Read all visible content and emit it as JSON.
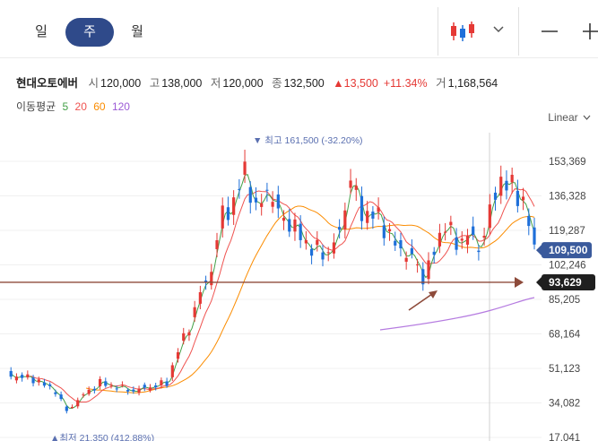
{
  "tabs": [
    {
      "label": "일",
      "active": false
    },
    {
      "label": "주",
      "active": true
    },
    {
      "label": "월",
      "active": false
    }
  ],
  "toolbar": {
    "chart_type_icon": "candlestick-icon",
    "dropdown_icon": "chevron-down-icon",
    "minimize_icon": "minus-icon",
    "add_icon": "plus-icon"
  },
  "stock": {
    "name": "현대오토에버",
    "open_label": "시",
    "open": "120,000",
    "high_label": "고",
    "high": "138,000",
    "low_label": "저",
    "low": "120,000",
    "close_label": "종",
    "close": "132,500",
    "change": "▲13,500",
    "change_pct": "+11.34%",
    "volume_label": "거",
    "volume": "1,168,564"
  },
  "ma_legend": {
    "label": "이동평균",
    "items": [
      {
        "period": "5",
        "color": "#43a047"
      },
      {
        "period": "20",
        "color": "#ef5350"
      },
      {
        "period": "60",
        "color": "#fb8c00"
      },
      {
        "period": "120",
        "color": "#9c5bd6"
      }
    ]
  },
  "scale_mode": "Linear",
  "colors": {
    "up": "#e53935",
    "down": "#1e6fd9",
    "badge": "#3a5a9c",
    "line_price": "#222",
    "hline": "#8d4a3a"
  },
  "chart_data": {
    "type": "candlestick",
    "y_ticks": [
      "153,369",
      "136,328",
      "119,287",
      "102,246",
      "85,205",
      "68,164",
      "51,123",
      "34,082",
      "17,041"
    ],
    "y_tick_values": [
      153369,
      136328,
      119287,
      102246,
      85205,
      68164,
      51123,
      34082,
      17041
    ],
    "current_price": {
      "label": "109,500",
      "value": 109500
    },
    "horizontal_line": {
      "label": "93,629",
      "value": 93629
    },
    "high_annotation": {
      "label": "▼ 최고 161,500 (-32.20%)",
      "value": 161500
    },
    "low_annotation": {
      "label": "▲최저 21,350 (412.88%)",
      "value": 21350
    },
    "ma_lines": [
      "MA5",
      "MA20",
      "MA60",
      "MA120"
    ]
  }
}
